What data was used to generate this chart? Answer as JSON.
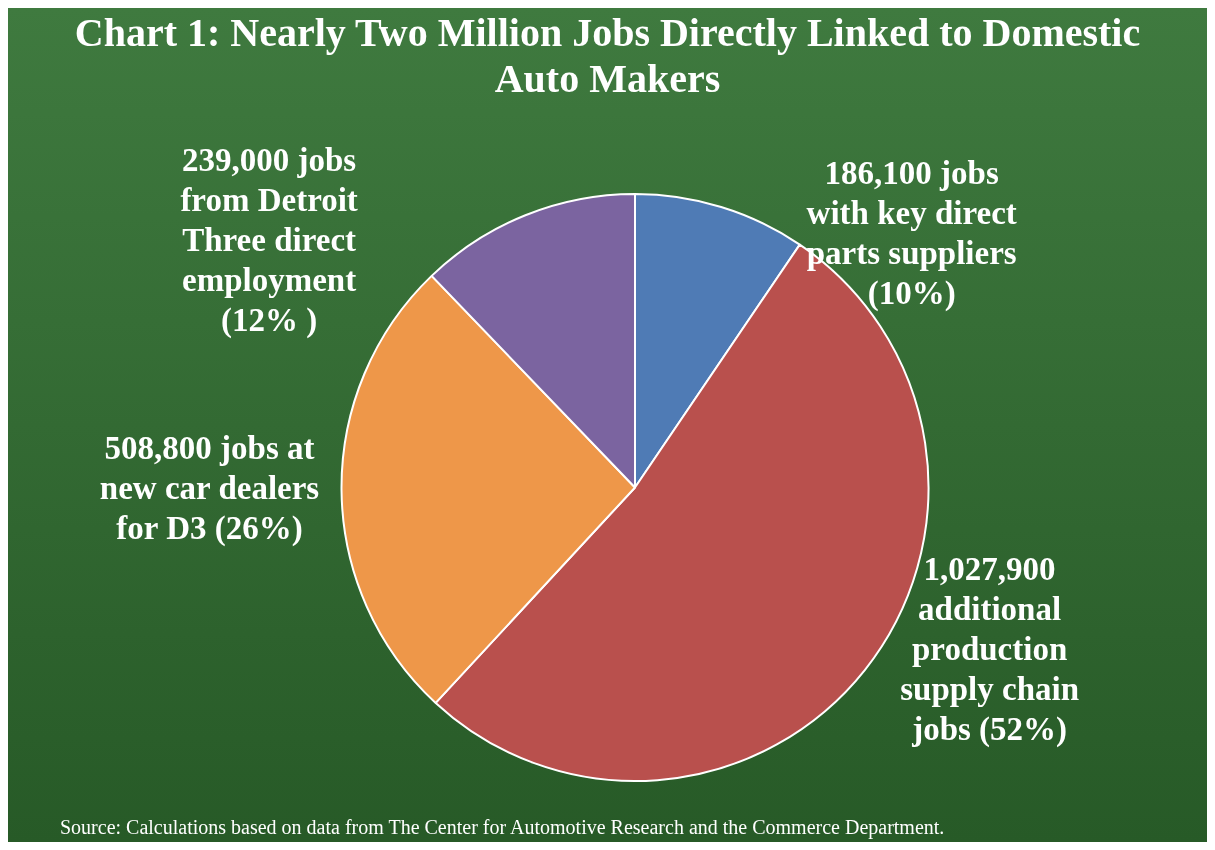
{
  "chart_data": {
    "type": "pie",
    "title": "Chart 1: Nearly Two Million Jobs Directly Linked to Domestic Auto Makers",
    "categories": [
      "186,100 jobs with key direct parts suppliers (10%)",
      "1,027,900 additional production supply chain jobs (52%)",
      "508,800 jobs at new car dealers for D3 (26%)",
      "239,000 jobs from Detroit Three direct employment (12% )"
    ],
    "values": [
      186100,
      1027900,
      508800,
      239000
    ],
    "colors": [
      "#4f7bb5",
      "#b9504d",
      "#ee9749",
      "#7b64a0"
    ],
    "legend": false,
    "annotations": [
      "Source: Calculations based on data from The Center for Automotive Research and the Commerce Department."
    ]
  }
}
